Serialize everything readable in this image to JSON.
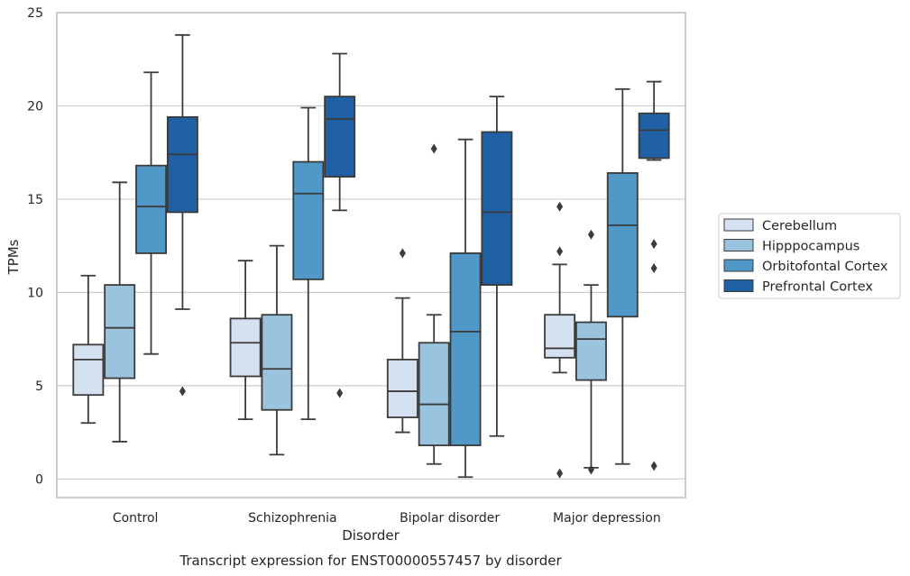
{
  "chart_data": {
    "type": "box",
    "title": "",
    "caption": "Transcript expression for ENST00000557457 by disorder",
    "xlabel": "Disorder",
    "ylabel": "TPMs",
    "ylim": [
      -1,
      25
    ],
    "yticks": [
      0,
      5,
      10,
      15,
      20,
      25
    ],
    "grid": true,
    "legend_placement": "right",
    "categories": [
      "Control",
      "Schizophrenia",
      "Bipolar disorder",
      "Major depression"
    ],
    "series": [
      {
        "name": "Cerebellum",
        "color": "#d3e1f0",
        "boxes": [
          {
            "whislo": 3.0,
            "q1": 4.5,
            "med": 6.4,
            "q3": 7.2,
            "whishi": 10.9,
            "fliers": []
          },
          {
            "whislo": 3.2,
            "q1": 5.5,
            "med": 7.3,
            "q3": 8.6,
            "whishi": 11.7,
            "fliers": []
          },
          {
            "whislo": 2.5,
            "q1": 3.3,
            "med": 4.7,
            "q3": 6.4,
            "whishi": 9.7,
            "fliers": [
              12.1
            ]
          },
          {
            "whislo": 5.7,
            "q1": 6.5,
            "med": 7.0,
            "q3": 8.8,
            "whishi": 11.5,
            "fliers": [
              14.6,
              12.2,
              0.3
            ]
          }
        ]
      },
      {
        "name": "Hipppocampus",
        "color": "#9ac3dd",
        "boxes": [
          {
            "whislo": 2.0,
            "q1": 5.4,
            "med": 8.1,
            "q3": 10.4,
            "whishi": 15.9,
            "fliers": []
          },
          {
            "whislo": 1.3,
            "q1": 3.7,
            "med": 5.9,
            "q3": 8.8,
            "whishi": 12.5,
            "fliers": []
          },
          {
            "whislo": 0.8,
            "q1": 1.8,
            "med": 4.0,
            "q3": 7.3,
            "whishi": 8.8,
            "fliers": [
              17.7
            ]
          },
          {
            "whislo": 0.6,
            "q1": 5.3,
            "med": 7.5,
            "q3": 8.4,
            "whishi": 10.4,
            "fliers": [
              13.1,
              0.5
            ]
          }
        ]
      },
      {
        "name": "Orbitofontal Cortex",
        "color": "#5098c8",
        "boxes": [
          {
            "whislo": 6.7,
            "q1": 12.1,
            "med": 14.6,
            "q3": 16.8,
            "whishi": 21.8,
            "fliers": []
          },
          {
            "whislo": 3.2,
            "q1": 10.7,
            "med": 15.3,
            "q3": 17.0,
            "whishi": 19.9,
            "fliers": []
          },
          {
            "whislo": 0.1,
            "q1": 1.8,
            "med": 7.9,
            "q3": 12.1,
            "whishi": 18.2,
            "fliers": []
          },
          {
            "whislo": 0.8,
            "q1": 8.7,
            "med": 13.6,
            "q3": 16.4,
            "whishi": 20.9,
            "fliers": []
          }
        ]
      },
      {
        "name": "Prefrontal Cortex",
        "color": "#2060a4",
        "boxes": [
          {
            "whislo": 9.1,
            "q1": 14.3,
            "med": 17.4,
            "q3": 19.4,
            "whishi": 23.8,
            "fliers": [
              4.7
            ]
          },
          {
            "whislo": 14.4,
            "q1": 16.2,
            "med": 19.3,
            "q3": 20.5,
            "whishi": 22.8,
            "fliers": [
              4.6
            ]
          },
          {
            "whislo": 2.3,
            "q1": 10.4,
            "med": 14.3,
            "q3": 18.6,
            "whishi": 20.5,
            "fliers": []
          },
          {
            "whislo": 17.1,
            "q1": 17.2,
            "med": 18.7,
            "q3": 19.6,
            "whishi": 21.3,
            "fliers": [
              12.6,
              11.3,
              0.7
            ]
          }
        ]
      }
    ]
  }
}
